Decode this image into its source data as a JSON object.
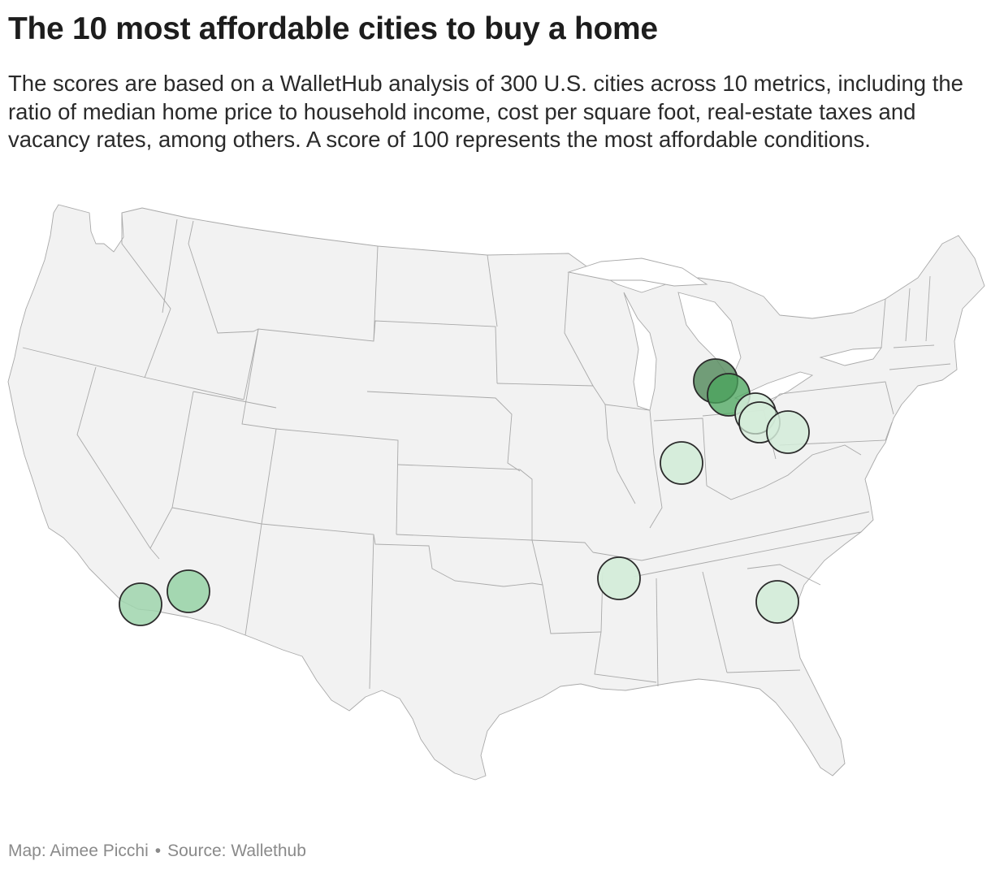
{
  "title": "The 10 most affordable cities to buy a home",
  "subtitle": "The scores are based on a WalletHub analysis of 300 U.S. cities across 10 metrics, including the ratio of median home price to household income, cost per square foot, real-estate taxes and vacancy rates, among others. A score of 100 represents the most affordable conditions.",
  "footer": {
    "credit": "Map: Aimee Picchi",
    "source": "Source: Wallethub"
  },
  "colors": {
    "land": "#f2f2f2",
    "state_border": "#a9a9a9",
    "bubble_stroke": "#2b2b2b",
    "scale_low": "#d4ecd9",
    "scale_mid": "#9fd5ad",
    "scale_high": "#4aa65c",
    "scale_top": "#5b8e63"
  },
  "chart_data": {
    "type": "bubble-map",
    "region": "United States",
    "points": [
      {
        "lon": -83.7,
        "lat": 43.0,
        "level": "top"
      },
      {
        "lon": -83.1,
        "lat": 42.5,
        "level": "high"
      },
      {
        "lon": -81.8,
        "lat": 41.6,
        "level": "low"
      },
      {
        "lon": -81.4,
        "lat": 41.1,
        "level": "low"
      },
      {
        "lon": -80.3,
        "lat": 40.6,
        "level": "low"
      },
      {
        "lon": -86.3,
        "lat": 39.8,
        "level": "low"
      },
      {
        "lon": -90.0,
        "lat": 35.1,
        "level": "low"
      },
      {
        "lon": -81.6,
        "lat": 33.4,
        "level": "low"
      },
      {
        "lon": -114.6,
        "lat": 33.6,
        "level": "mid"
      },
      {
        "lon": -116.5,
        "lat": 33.0,
        "level": "mid"
      }
    ]
  }
}
